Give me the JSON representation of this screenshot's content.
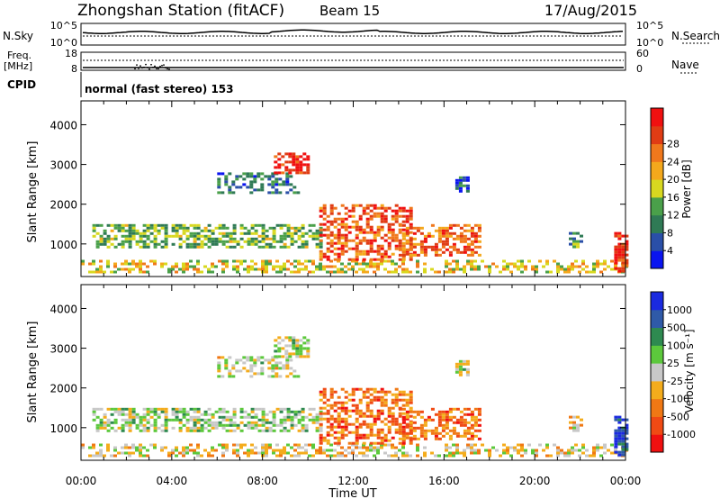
{
  "header": {
    "station": "Zhongshan Station (fitACF)",
    "beam": "Beam 15",
    "date": "17/Aug/2015"
  },
  "top_panel": {
    "left_label": "N.Sky",
    "left_ticks": [
      "10^5",
      "10^0"
    ],
    "right_label": "N.Search",
    "right_ticks": [
      "10^5",
      "10^0"
    ]
  },
  "freq_panel": {
    "left_label_1": "Freq.",
    "left_label_2": "[MHz]",
    "left_ticks": [
      "18",
      "8"
    ],
    "right_label": "Nave",
    "right_ticks": [
      "60",
      "0"
    ]
  },
  "cpid": {
    "label": "CPID",
    "mode": "normal (fast stereo) 153"
  },
  "colors": {
    "power": [
      "#0a14f0",
      "#2a4fa8",
      "#2f7a55",
      "#4aa04a",
      "#d8d820",
      "#f4a81c",
      "#f0781c",
      "#e03c14",
      "#f01010"
    ],
    "velocity": [
      "#f01010",
      "#f04a14",
      "#f07814",
      "#f4ac1c",
      "#c8c8c8",
      "#5cc83c",
      "#2e8a50",
      "#2f5aa8",
      "#1a2ae0"
    ]
  },
  "chart_data": [
    {
      "type": "heatmap",
      "title": "Power",
      "colorbar_label": "Power [dB]",
      "colorbar_ticks": [
        "4",
        "8",
        "12",
        "16",
        "20",
        "24",
        "28"
      ],
      "xlabel": "",
      "ylabel": "Slant Range [km]",
      "y_ticks": [
        "1000",
        "2000",
        "3000",
        "4000"
      ],
      "ylim": [
        180,
        4600
      ],
      "xlim": [
        0,
        24
      ],
      "features": [
        {
          "t0": 0.0,
          "t1": 24.0,
          "r0": 300,
          "r1": 600,
          "level": 0.55,
          "density": 0.45
        },
        {
          "t0": 0.5,
          "t1": 10.5,
          "r0": 900,
          "r1": 1500,
          "level": 0.4,
          "density": 0.55
        },
        {
          "t0": 6.0,
          "t1": 9.5,
          "r0": 2300,
          "r1": 2800,
          "level": 0.25,
          "density": 0.5
        },
        {
          "t0": 8.5,
          "t1": 10.0,
          "r0": 2800,
          "r1": 3300,
          "level": 0.9,
          "density": 0.6
        },
        {
          "t0": 10.5,
          "t1": 14.5,
          "r0": 600,
          "r1": 2000,
          "level": 0.8,
          "density": 0.55
        },
        {
          "t0": 14.0,
          "t1": 17.5,
          "r0": 700,
          "r1": 1500,
          "level": 0.75,
          "density": 0.5
        },
        {
          "t0": 16.5,
          "t1": 17.0,
          "r0": 2300,
          "r1": 2700,
          "level": 0.2,
          "density": 0.6
        },
        {
          "t0": 21.5,
          "t1": 22.0,
          "r0": 900,
          "r1": 1300,
          "level": 0.3,
          "density": 0.5
        },
        {
          "t0": 23.5,
          "t1": 24.0,
          "r0": 300,
          "r1": 1300,
          "level": 0.9,
          "density": 0.7
        }
      ]
    },
    {
      "type": "heatmap",
      "title": "Velocity",
      "colorbar_label": "Velocity [m s⁻¹]",
      "colorbar_ticks": [
        "1000",
        "500",
        "100",
        "25",
        "-25",
        "-100",
        "-500",
        "-1000"
      ],
      "xlabel": "Time UT",
      "x_ticks": [
        "00:00",
        "04:00",
        "08:00",
        "12:00",
        "16:00",
        "20:00",
        "00:00"
      ],
      "ylabel": "Slant Range [km]",
      "y_ticks": [
        "1000",
        "2000",
        "3000",
        "4000"
      ],
      "ylim": [
        180,
        4600
      ],
      "xlim": [
        0,
        24
      ],
      "features": [
        {
          "t0": 0.0,
          "t1": 24.0,
          "r0": 300,
          "r1": 600,
          "level": 0.45,
          "density": 0.45
        },
        {
          "t0": 0.5,
          "t1": 10.5,
          "r0": 900,
          "r1": 1500,
          "level": 0.55,
          "density": 0.55
        },
        {
          "t0": 6.0,
          "t1": 9.5,
          "r0": 2300,
          "r1": 2800,
          "level": 0.5,
          "density": 0.5
        },
        {
          "t0": 8.5,
          "t1": 10.0,
          "r0": 2800,
          "r1": 3300,
          "level": 0.5,
          "density": 0.6
        },
        {
          "t0": 10.5,
          "t1": 14.5,
          "r0": 600,
          "r1": 2000,
          "level": 0.25,
          "density": 0.55
        },
        {
          "t0": 14.0,
          "t1": 17.5,
          "r0": 700,
          "r1": 1500,
          "level": 0.25,
          "density": 0.5
        },
        {
          "t0": 16.5,
          "t1": 17.0,
          "r0": 2300,
          "r1": 2700,
          "level": 0.5,
          "density": 0.6
        },
        {
          "t0": 21.5,
          "t1": 22.0,
          "r0": 900,
          "r1": 1300,
          "level": 0.4,
          "density": 0.5
        },
        {
          "t0": 23.5,
          "t1": 24.0,
          "r0": 300,
          "r1": 1300,
          "level": 0.9,
          "density": 0.7
        }
      ]
    }
  ]
}
